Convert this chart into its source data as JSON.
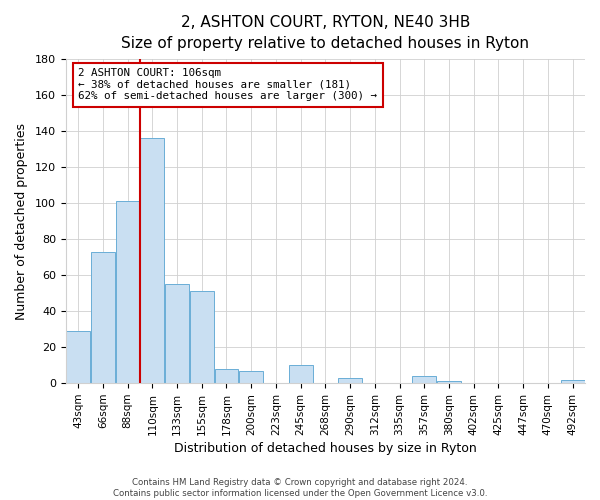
{
  "title": "2, ASHTON COURT, RYTON, NE40 3HB",
  "subtitle": "Size of property relative to detached houses in Ryton",
  "xlabel": "Distribution of detached houses by size in Ryton",
  "ylabel": "Number of detached properties",
  "bar_labels": [
    "43sqm",
    "66sqm",
    "88sqm",
    "110sqm",
    "133sqm",
    "155sqm",
    "178sqm",
    "200sqm",
    "223sqm",
    "245sqm",
    "268sqm",
    "290sqm",
    "312sqm",
    "335sqm",
    "357sqm",
    "380sqm",
    "402sqm",
    "425sqm",
    "447sqm",
    "470sqm",
    "492sqm"
  ],
  "bar_heights": [
    29,
    73,
    101,
    136,
    55,
    51,
    8,
    7,
    0,
    10,
    0,
    3,
    0,
    0,
    4,
    1,
    0,
    0,
    0,
    0,
    2
  ],
  "bar_color": "#c9dff2",
  "bar_edge_color": "#6aaed6",
  "ylim": [
    0,
    180
  ],
  "yticks": [
    0,
    20,
    40,
    60,
    80,
    100,
    120,
    140,
    160,
    180
  ],
  "vline_x_index": 3,
  "vline_color": "#cc0000",
  "annotation_text": "2 ASHTON COURT: 106sqm\n← 38% of detached houses are smaller (181)\n62% of semi-detached houses are larger (300) →",
  "annotation_box_color": "#ffffff",
  "annotation_box_edge": "#cc0000",
  "footer_line1": "Contains HM Land Registry data © Crown copyright and database right 2024.",
  "footer_line2": "Contains public sector information licensed under the Open Government Licence v3.0.",
  "background_color": "#ffffff",
  "grid_color": "#d0d0d0",
  "title_fontsize": 11,
  "subtitle_fontsize": 9,
  "xlabel_fontsize": 9,
  "ylabel_fontsize": 9
}
